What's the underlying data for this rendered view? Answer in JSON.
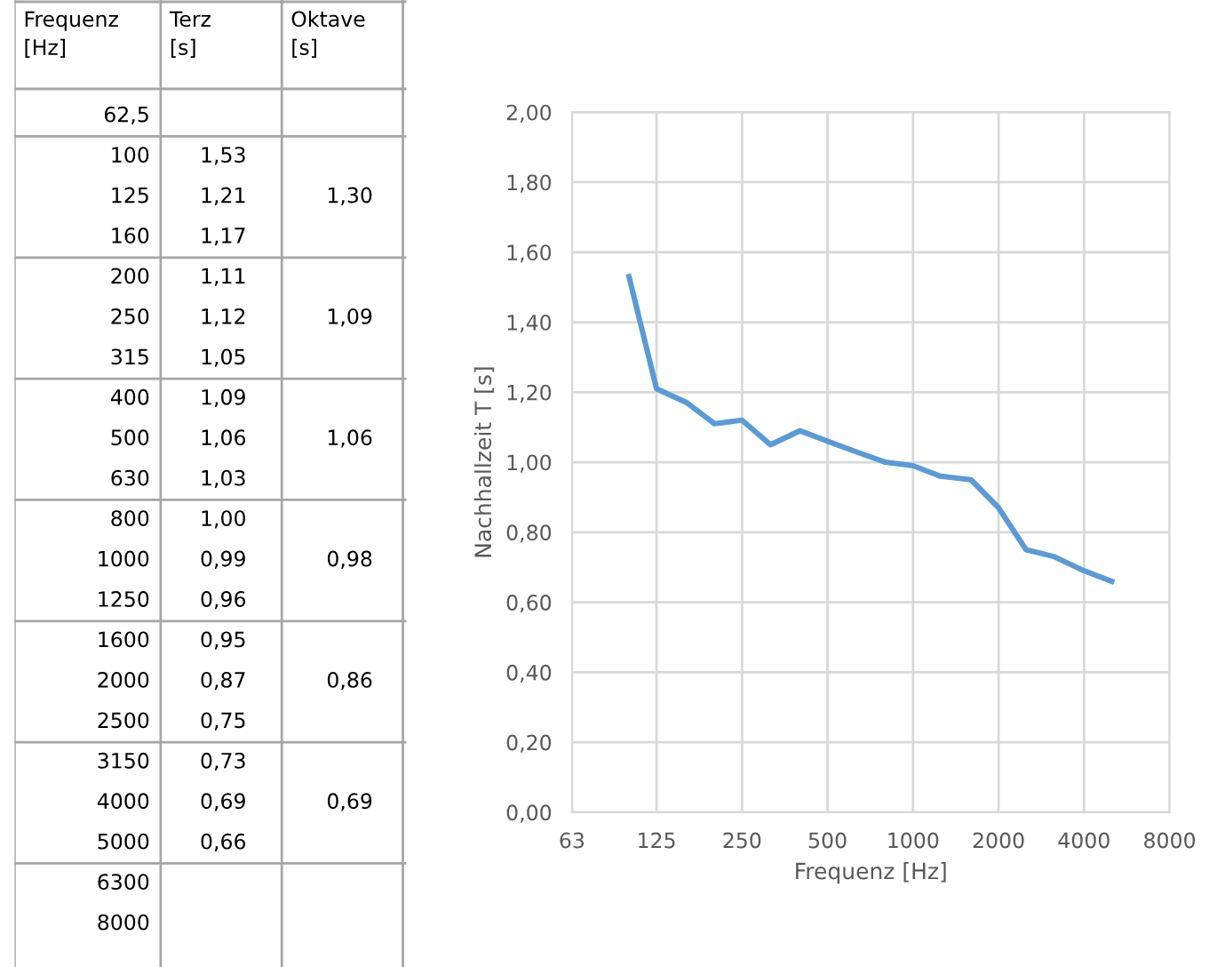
{
  "chart_data": [
    {
      "type": "other",
      "xlabel": "Frequenz [Hz]",
      "categories": [
        "62,5",
        "100",
        "125",
        "160",
        "200",
        "250",
        "315",
        "400",
        "500",
        "630",
        "800",
        "1000",
        "1250",
        "1600",
        "2000",
        "2500",
        "3150",
        "4000",
        "5000",
        "6300",
        "8000"
      ],
      "series": [
        {
          "name": "Terz [s]",
          "values": [
            null,
            1.53,
            1.21,
            1.17,
            1.11,
            1.12,
            1.05,
            1.09,
            1.06,
            1.03,
            1.0,
            0.99,
            0.96,
            0.95,
            0.87,
            0.75,
            0.73,
            0.69,
            0.66,
            null,
            null
          ],
          "value_labels": [
            null,
            "1,53",
            "1,21",
            "1,17",
            "1,11",
            "1,12",
            "1,05",
            "1,09",
            "1,06",
            "1,03",
            "1,00",
            "0,99",
            "0,96",
            "0,95",
            "0,87",
            "0,75",
            "0,73",
            "0,69",
            "0,66",
            null,
            null
          ]
        },
        {
          "name": "Oktave [s]",
          "values": [
            null,
            null,
            1.3,
            null,
            null,
            1.09,
            null,
            null,
            1.06,
            null,
            null,
            0.98,
            null,
            null,
            0.86,
            null,
            null,
            0.69,
            null,
            null,
            null
          ],
          "value_labels": [
            null,
            null,
            "1,30",
            null,
            null,
            "1,09",
            null,
            null,
            "1,06",
            null,
            null,
            "0,98",
            null,
            null,
            "0,86",
            null,
            null,
            "0,69",
            null,
            null,
            null
          ]
        }
      ]
    },
    {
      "type": "line",
      "xlabel": "Frequenz [Hz]",
      "ylabel": "Nachhallzeit T [s]",
      "log": "x",
      "grid": true,
      "xlim": [
        63,
        8000
      ],
      "xticks": [
        63,
        125,
        250,
        500,
        1000,
        2000,
        4000,
        8000
      ],
      "ylim": [
        0,
        2
      ],
      "yticks": [
        {
          "value": 0,
          "label": "0,00"
        },
        {
          "value": 0.2,
          "label": "0,20"
        },
        {
          "value": 0.4,
          "label": "0,40"
        },
        {
          "value": 0.6,
          "label": "0,60"
        },
        {
          "value": 0.8,
          "label": "0,80"
        },
        {
          "value": 1.0,
          "label": "1,00"
        },
        {
          "value": 1.2,
          "label": "1,20"
        },
        {
          "value": 1.4,
          "label": "1,40"
        },
        {
          "value": 1.6,
          "label": "1,60"
        },
        {
          "value": 1.8,
          "label": "1,80"
        },
        {
          "value": 2.0,
          "label": "2,00"
        }
      ],
      "x": [
        100,
        125,
        160,
        200,
        250,
        315,
        400,
        500,
        630,
        800,
        1000,
        1250,
        1600,
        2000,
        2500,
        3150,
        4000,
        5000
      ],
      "series": [
        {
          "color": "#5b9bd5",
          "values": [
            1.53,
            1.21,
            1.17,
            1.11,
            1.12,
            1.05,
            1.09,
            1.06,
            1.03,
            1.0,
            0.99,
            0.96,
            0.95,
            0.87,
            0.75,
            0.73,
            0.69,
            0.66
          ]
        }
      ]
    }
  ]
}
